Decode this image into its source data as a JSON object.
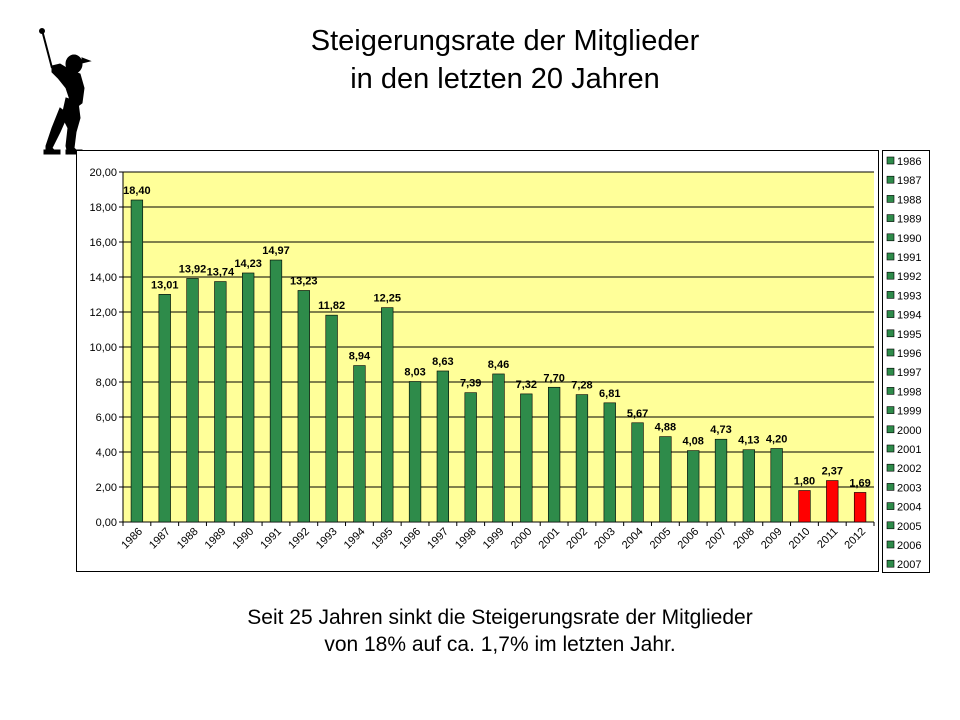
{
  "title": {
    "line1": "Steigerungsrate der Mitglieder",
    "line2": "in den letzten 20 Jahren"
  },
  "caption": {
    "line1": "Seit 25 Jahren sinkt die Steigerungsrate der Mitglieder",
    "line2": "von 18% auf ca. 1,7% im letzten Jahr."
  },
  "logo": {
    "icon": "golfer-silhouette-icon"
  },
  "colors": {
    "plot_background": "#ffff99",
    "bar_green": "#2e8b4a",
    "bar_red": "#ff0000",
    "gridline": "#000000"
  },
  "chart_data": {
    "type": "bar",
    "categories": [
      "1986",
      "1987",
      "1988",
      "1989",
      "1990",
      "1991",
      "1992",
      "1993",
      "1994",
      "1995",
      "1996",
      "1997",
      "1998",
      "1999",
      "2000",
      "2001",
      "2002",
      "2003",
      "2004",
      "2005",
      "2006",
      "2007",
      "2008",
      "2009",
      "2010",
      "2011",
      "2012"
    ],
    "values": [
      18.4,
      13.01,
      13.92,
      13.74,
      14.23,
      14.97,
      13.23,
      11.82,
      8.94,
      12.25,
      8.03,
      8.63,
      7.39,
      8.46,
      7.32,
      7.7,
      7.28,
      6.81,
      5.67,
      4.88,
      4.08,
      4.73,
      4.13,
      4.2,
      1.8,
      2.37,
      1.69
    ],
    "data_labels": [
      "18,40",
      "13,01",
      "13,92",
      "13,74",
      "14,23",
      "14,97",
      "13,23",
      "11,82",
      "8,94",
      "12,25",
      "8,03",
      "8,63",
      "7,39",
      "8,46",
      "7,32",
      "7,70",
      "7,28",
      "6,81",
      "5,67",
      "4,88",
      "4,08",
      "4,73",
      "4,13",
      "4,20",
      "1,80",
      "2,37",
      "1,69"
    ],
    "bar_colors": [
      "green",
      "green",
      "green",
      "green",
      "green",
      "green",
      "green",
      "green",
      "green",
      "green",
      "green",
      "green",
      "green",
      "green",
      "green",
      "green",
      "green",
      "green",
      "green",
      "green",
      "green",
      "green",
      "green",
      "green",
      "red",
      "red",
      "red"
    ],
    "ylim": [
      0,
      20
    ],
    "yticks": [
      "0,00",
      "2,00",
      "4,00",
      "6,00",
      "8,00",
      "10,00",
      "12,00",
      "14,00",
      "16,00",
      "18,00",
      "20,00"
    ],
    "grid": true,
    "legend_position": "right",
    "legend": [
      "1986",
      "1987",
      "1988",
      "1989",
      "1990",
      "1991",
      "1992",
      "1993",
      "1994",
      "1995",
      "1996",
      "1997",
      "1998",
      "1999",
      "2000",
      "2001",
      "2002",
      "2003",
      "2004",
      "2005",
      "2006",
      "2007"
    ]
  }
}
